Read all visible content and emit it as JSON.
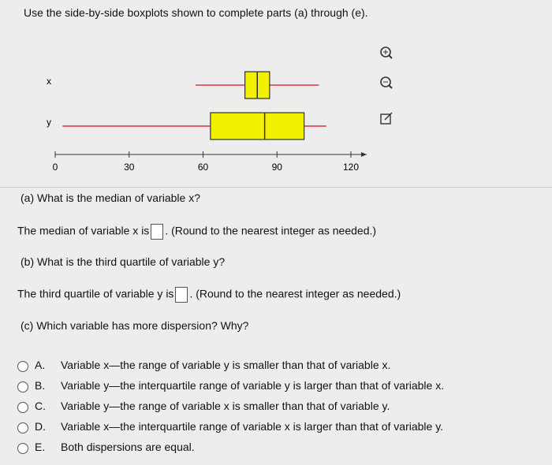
{
  "header": {
    "instruction": "Use the side-by-side boxplots shown to complete parts (a) through (e)."
  },
  "chart_data": {
    "type": "boxplot",
    "series": [
      {
        "name": "x",
        "min": 57,
        "q1": 77,
        "median": 82,
        "q3": 87,
        "max": 107
      },
      {
        "name": "y",
        "min": 3,
        "q1": 63,
        "median": 85,
        "q3": 101,
        "max": 110
      }
    ],
    "box_color": "#f2f200",
    "whisker_color": "#d9343c",
    "xlim": [
      0,
      120
    ],
    "xticks": [
      0,
      30,
      60,
      90,
      120
    ]
  },
  "questions": {
    "a": {
      "prompt": "(a) What is the median of variable x?",
      "answer_before": "The median of variable x is",
      "answer_after": ". (Round to the nearest integer as needed.)"
    },
    "b": {
      "prompt": "(b) What is the third quartile of variable y?",
      "answer_before": "The third quartile of variable y is",
      "answer_after": ". (Round to the nearest integer as needed.)"
    },
    "c": {
      "prompt": "(c) Which variable has more dispersion? Why?",
      "options": [
        {
          "letter": "A.",
          "text": "Variable x—the range of variable y is smaller than that of variable x."
        },
        {
          "letter": "B.",
          "text": "Variable y—the interquartile range of variable y is larger than that of variable x."
        },
        {
          "letter": "C.",
          "text": "Variable y—the range of variable x is smaller than that of variable y."
        },
        {
          "letter": "D.",
          "text": "Variable x—the interquartile range of variable x is larger than that of variable y."
        },
        {
          "letter": "E.",
          "text": "Both dispersions are equal."
        }
      ]
    }
  }
}
